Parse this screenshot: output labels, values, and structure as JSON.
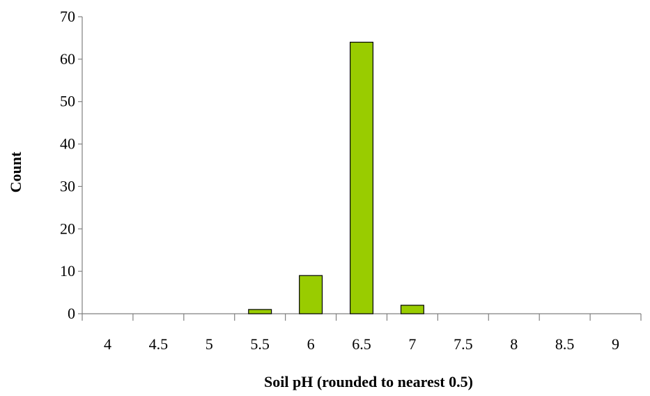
{
  "chart_data": {
    "type": "bar",
    "title": "",
    "xlabel": "Soil pH (rounded to nearest 0.5)",
    "ylabel": "Count",
    "categories": [
      "4",
      "4.5",
      "5",
      "5.5",
      "6",
      "6.5",
      "7",
      "7.5",
      "8",
      "8.5",
      "9"
    ],
    "values": [
      0,
      0,
      0,
      1,
      9,
      64,
      2,
      0,
      0,
      0,
      0
    ],
    "ylim": [
      0,
      70
    ],
    "yticks": [
      0,
      10,
      20,
      30,
      40,
      50,
      60,
      70
    ],
    "grid": false,
    "legend": "none",
    "colors": {
      "bar_fill": "#99CC00",
      "bar_stroke": "#000000",
      "axis": "#808080"
    }
  }
}
